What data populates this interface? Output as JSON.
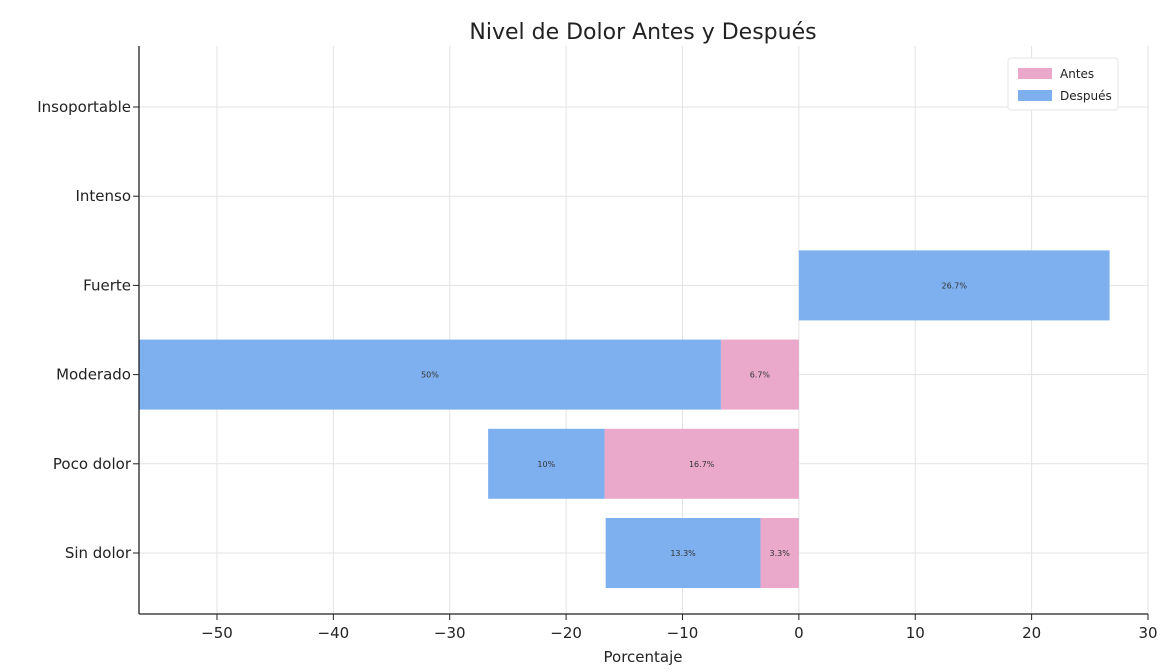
{
  "chart_data": {
    "type": "bar",
    "orientation": "horizontal",
    "stacked": true,
    "title": "Nivel de Dolor Antes y Después",
    "xlabel": "Porcentaje",
    "ylabel": "",
    "xlim": [
      -56.7,
      30
    ],
    "xticks": [
      -50,
      -40,
      -30,
      -20,
      -10,
      0,
      10,
      20,
      30
    ],
    "xtick_labels": [
      "−50",
      "−40",
      "−30",
      "−20",
      "−10",
      "0",
      "10",
      "20",
      "30"
    ],
    "grid": true,
    "legend_position": "top-right",
    "categories": [
      "Sin dolor",
      "Poco dolor",
      "Moderado",
      "Fuerte",
      "Intenso",
      "Insoportable"
    ],
    "series": [
      {
        "name": "Antes",
        "color": "#eaa8cb",
        "values": [
          -3.3,
          -16.7,
          -6.7,
          0,
          0,
          0
        ],
        "labels": [
          "3.3%",
          "16.7%",
          "6.7%",
          "",
          "",
          ""
        ]
      },
      {
        "name": "Después",
        "color": "#7eb0ef",
        "values": [
          -13.3,
          -10,
          -50,
          26.7,
          0,
          0
        ],
        "labels": [
          "13.3%",
          "10%",
          "50%",
          "26.7%",
          "",
          ""
        ]
      }
    ]
  }
}
